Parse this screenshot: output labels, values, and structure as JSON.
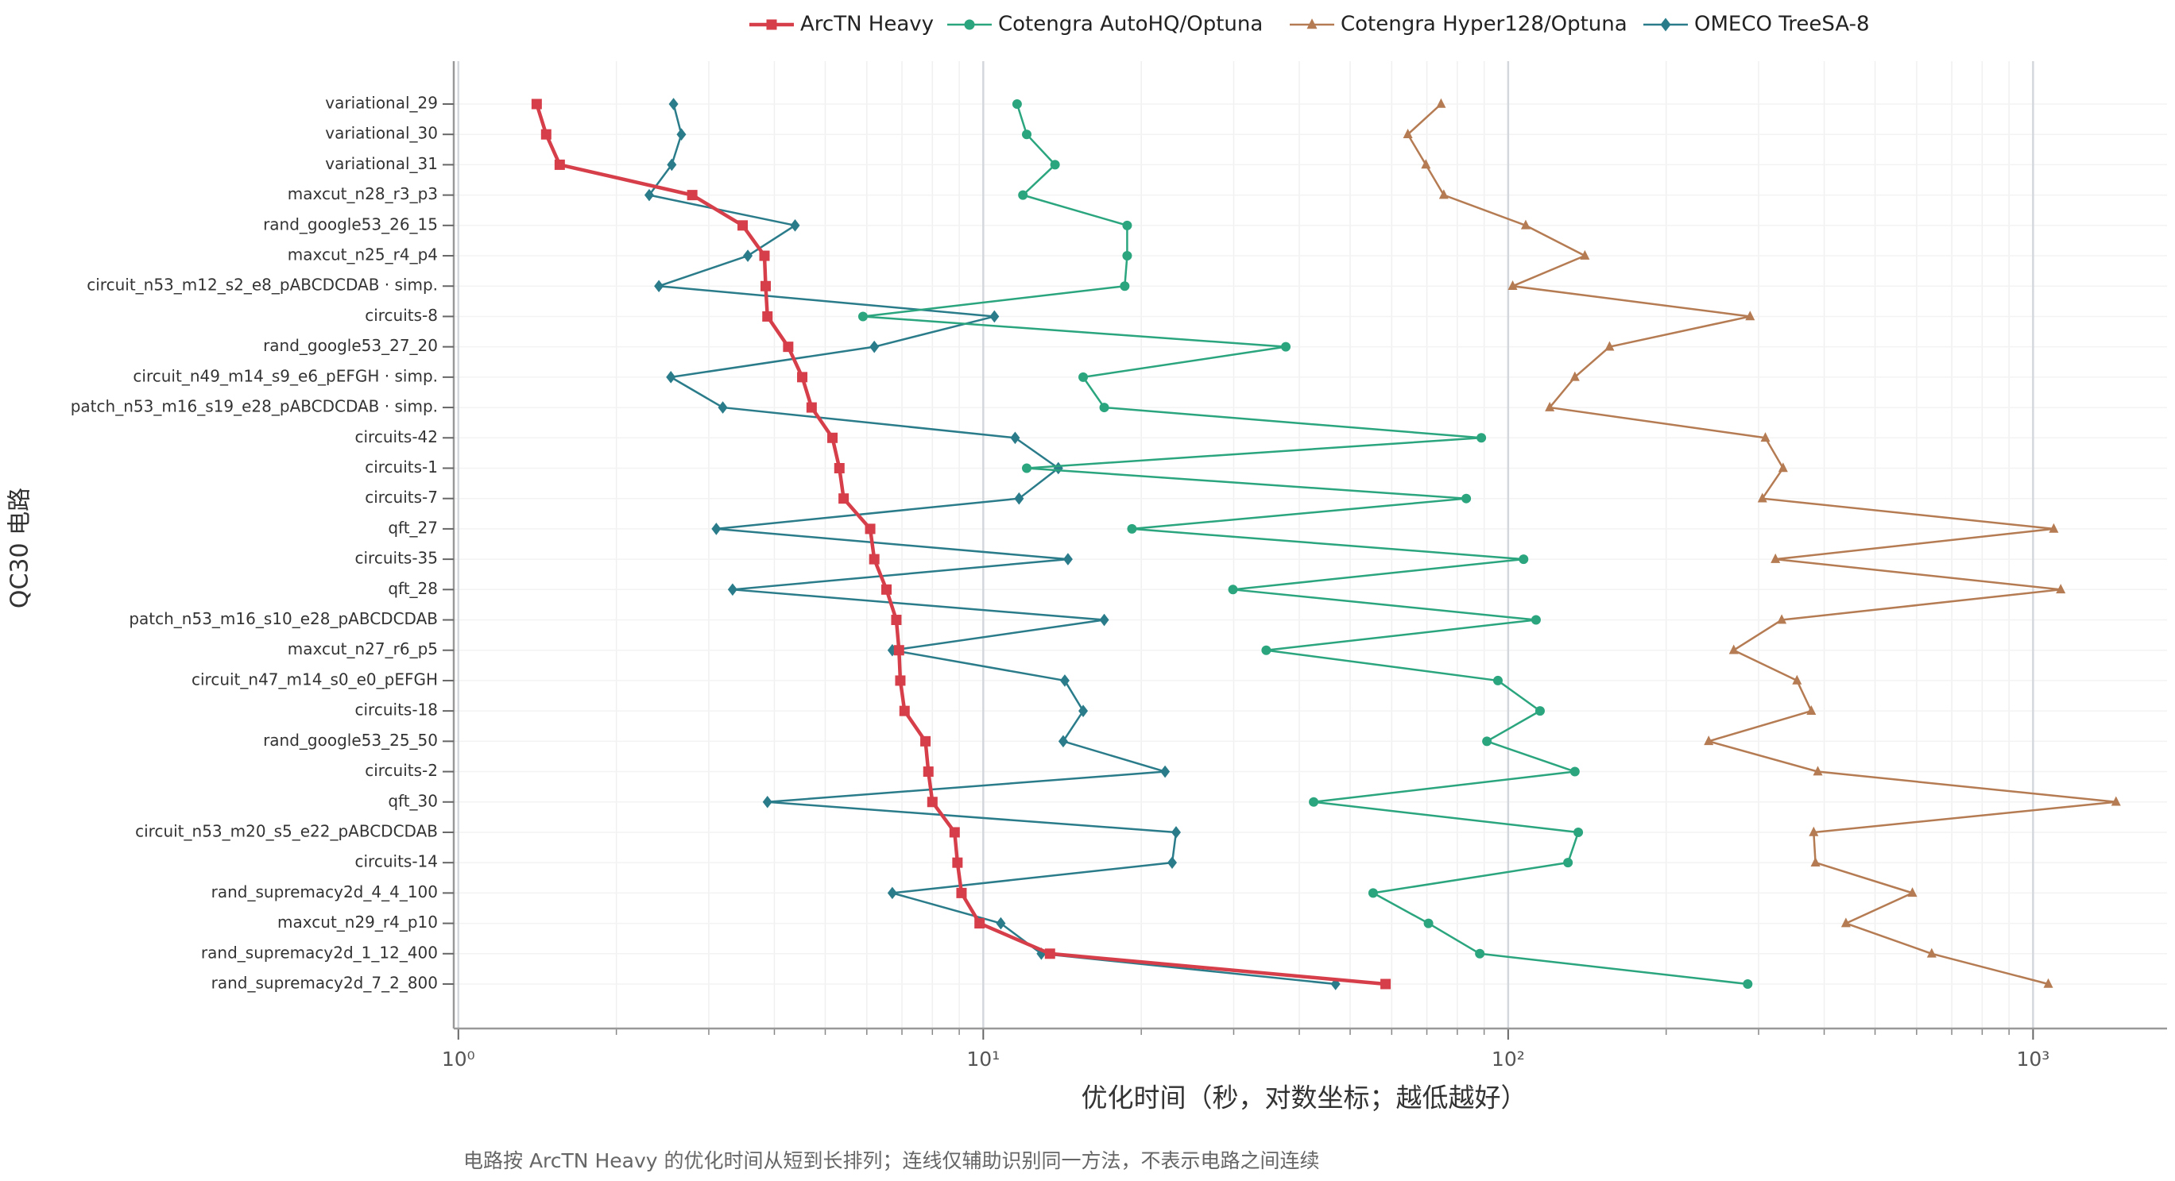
{
  "chart_data": {
    "type": "line",
    "orientation": "horizontal",
    "xlabel": "优化时间（秒，对数坐标；越低越好）",
    "ylabel": "QC30 电路",
    "footnote": "电路按 ArcTN Heavy 的优化时间从短到长排列；连线仅辅助识别同一方法，不表示电路之间连续",
    "xscale": "log",
    "xlim": [
      0.98,
      1800
    ],
    "xticks": [
      {
        "value": 1,
        "label": "10⁰"
      },
      {
        "value": 10,
        "label": "10¹"
      },
      {
        "value": 100,
        "label": "10²"
      },
      {
        "value": 1000,
        "label": "10³"
      }
    ],
    "grid": true,
    "legend": "upper center",
    "categories": [
      "variational_29",
      "variational_30",
      "variational_31",
      "maxcut_n28_r3_p3",
      "rand_google53_26_15",
      "maxcut_n25_r4_p4",
      "circuit_n53_m12_s2_e8_pABCDCDAB ·  simp.",
      "circuits-8",
      "rand_google53_27_20",
      "circuit_n49_m14_s9_e6_pEFGH ·  simp.",
      "patch_n53_m16_s19_e28_pABCDCDAB ·  simp.",
      "circuits-42",
      "circuits-1",
      "circuits-7",
      "qft_27",
      "circuits-35",
      "qft_28",
      "patch_n53_m16_s10_e28_pABCDCDAB",
      "maxcut_n27_r6_p5",
      "circuit_n47_m14_s0_e0_pEFGH",
      "circuits-18",
      "rand_google53_25_50",
      "circuits-2",
      "qft_30",
      "circuit_n53_m20_s5_e22_pABCDCDAB",
      "circuits-14",
      "rand_supremacy2d_4_4_100",
      "maxcut_n29_r4_p10",
      "rand_supremacy2d_1_12_400",
      "rand_supremacy2d_7_2_800"
    ],
    "series": [
      {
        "name": "ArcTN Heavy",
        "color": "#d63f4a",
        "marker": "square",
        "width": 4.5,
        "values": [
          1.41,
          1.47,
          1.56,
          2.79,
          3.48,
          3.83,
          3.85,
          3.88,
          4.25,
          4.52,
          4.71,
          5.16,
          5.32,
          5.42,
          6.09,
          6.2,
          6.54,
          6.83,
          6.91,
          6.95,
          7.08,
          7.76,
          7.86,
          8.0,
          8.82,
          8.93,
          9.09,
          9.84,
          13.4,
          58.4
        ]
      },
      {
        "name": "Cotengra AutoHQ/Optuna",
        "color": "#2aa57e",
        "marker": "circle",
        "width": 2.5,
        "values": [
          11.6,
          12.1,
          13.7,
          11.9,
          18.8,
          18.8,
          18.6,
          5.9,
          37.7,
          15.5,
          17.0,
          88.9,
          12.1,
          83.2,
          19.2,
          107,
          29.9,
          113,
          34.6,
          95.6,
          115,
          91.1,
          134,
          42.6,
          136,
          130,
          55.3,
          70.5,
          88.3,
          286
        ]
      },
      {
        "name": "Cotengra Hyper128/Optuna",
        "color": "#b57b52",
        "marker": "triangle",
        "width": 2.5,
        "values": [
          74.5,
          64.4,
          69.7,
          75.4,
          108,
          140,
          102,
          289,
          156,
          134,
          120,
          309,
          334,
          305,
          1095,
          323,
          1129,
          332,
          269,
          355,
          378,
          241,
          389,
          1439,
          382,
          385,
          589,
          440,
          641,
          1069
        ]
      },
      {
        "name": "OMECO TreeSA-8",
        "color": "#2a7c8a",
        "marker": "diamond",
        "width": 2.5,
        "values": [
          2.57,
          2.66,
          2.55,
          2.31,
          4.38,
          3.56,
          2.41,
          10.5,
          6.2,
          2.54,
          3.19,
          11.5,
          13.9,
          11.7,
          3.1,
          14.5,
          3.33,
          17.0,
          6.71,
          14.3,
          15.5,
          14.2,
          22.2,
          3.88,
          23.3,
          22.9,
          6.71,
          10.8,
          12.9,
          46.9
        ]
      }
    ]
  }
}
